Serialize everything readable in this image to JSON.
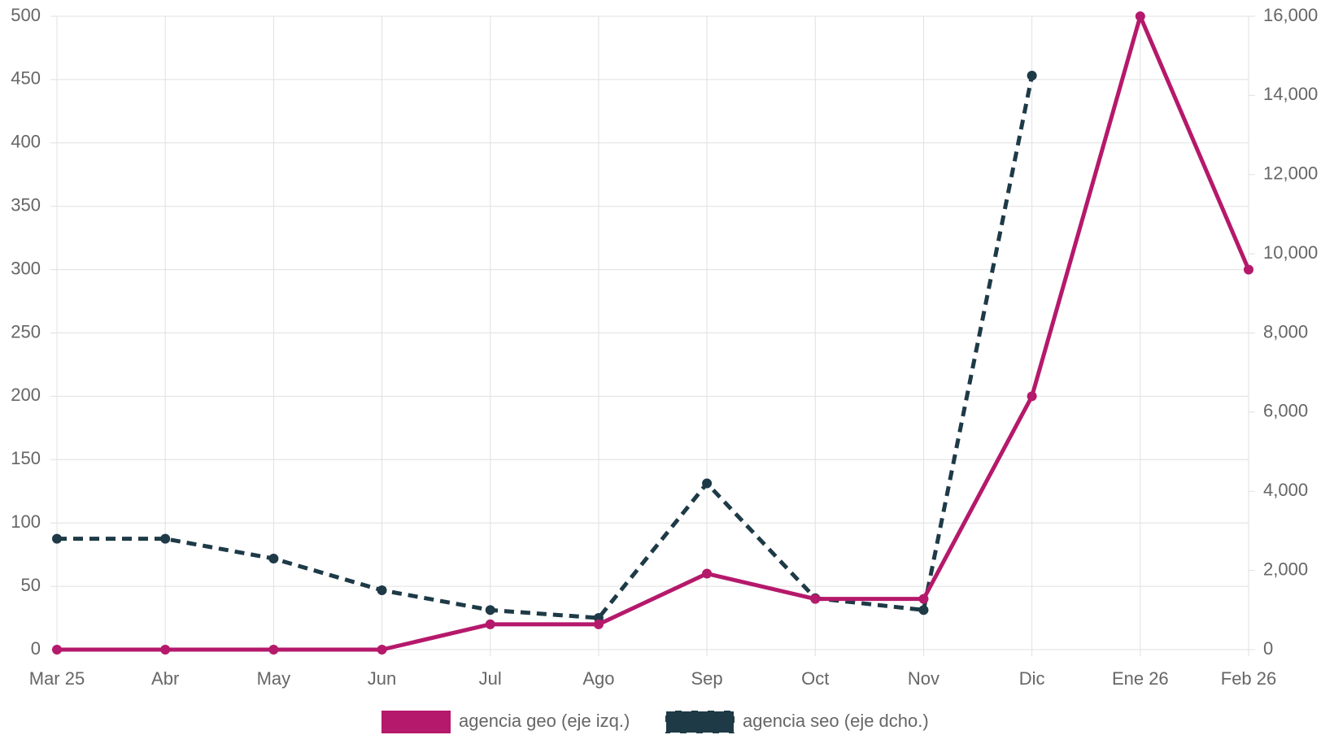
{
  "chart_data": {
    "type": "line",
    "categories": [
      "Mar 25",
      "Abr",
      "May",
      "Jun",
      "Jul",
      "Ago",
      "Sep",
      "Oct",
      "Nov",
      "Dic",
      "Ene 26",
      "Feb 26"
    ],
    "series": [
      {
        "name": "agencia geo (eje izq.)",
        "color": "#b5196b",
        "line_style": "solid",
        "axis": "y",
        "values": [
          0,
          0,
          0,
          0,
          20,
          20,
          60,
          40,
          40,
          200,
          500,
          300
        ]
      },
      {
        "name": "agencia seo (eje dcho.)",
        "color": "#1e3a47",
        "line_style": "dashed",
        "axis": "y2",
        "values": [
          2800,
          2800,
          2300,
          1500,
          1000,
          800,
          4200,
          1300,
          1000,
          14500,
          null,
          null
        ]
      }
    ],
    "ylim": [
      0,
      500
    ],
    "yticks": [
      0,
      50,
      100,
      150,
      200,
      250,
      300,
      350,
      400,
      450,
      500
    ],
    "y2lim": [
      0,
      16000
    ],
    "y2ticks": [
      0,
      {
        "value": 2000,
        "label": "2,000"
      },
      {
        "value": 4000,
        "label": "4,000"
      },
      {
        "value": 6000,
        "label": "6,000"
      },
      {
        "value": 8000,
        "label": "8,000"
      },
      {
        "value": 10000,
        "label": "10,000"
      },
      {
        "value": 12000,
        "label": "12,000"
      },
      {
        "value": 14000,
        "label": "14,000"
      },
      {
        "value": 16000,
        "label": "16,000"
      }
    ],
    "grid": true,
    "legend": "bottom"
  }
}
